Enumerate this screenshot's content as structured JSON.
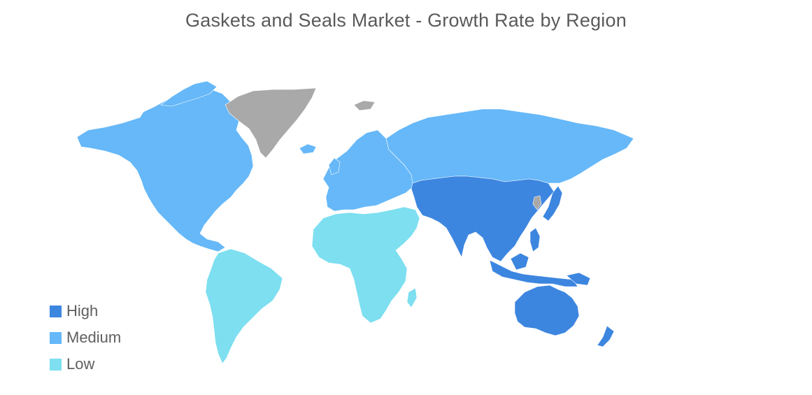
{
  "title": "Gaskets and Seals Market - Growth Rate by Region",
  "colors": {
    "high": "#3d86e0",
    "medium": "#66b8f8",
    "low": "#7ddff0",
    "no_data": "#a9a9a9"
  },
  "legend": [
    {
      "label": "High",
      "color": "#3d86e0"
    },
    {
      "label": "Medium",
      "color": "#66b8f8"
    },
    {
      "label": "Low",
      "color": "#7ddff0"
    }
  ],
  "regions": [
    {
      "name": "North America",
      "level": "medium"
    },
    {
      "name": "Europe",
      "level": "medium"
    },
    {
      "name": "Russia",
      "level": "medium"
    },
    {
      "name": "Asia-Pacific",
      "level": "high"
    },
    {
      "name": "Australia",
      "level": "high"
    },
    {
      "name": "New Zealand",
      "level": "high"
    },
    {
      "name": "South America",
      "level": "low"
    },
    {
      "name": "Middle East and Africa",
      "level": "low"
    },
    {
      "name": "Greenland",
      "level": "no_data"
    }
  ]
}
